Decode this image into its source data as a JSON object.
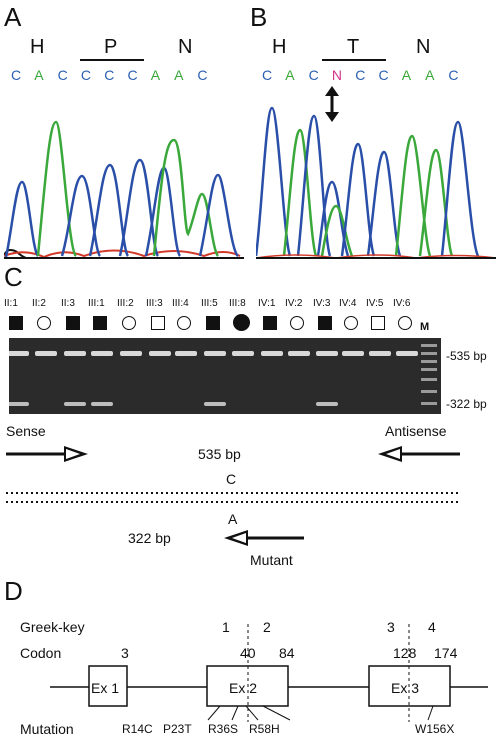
{
  "panel_a": {
    "letter": "A",
    "aa": [
      "H",
      "P",
      "N"
    ],
    "bases": [
      {
        "b": "C",
        "color": "#2a5fb0"
      },
      {
        "b": "A",
        "color": "#3aa83a"
      },
      {
        "b": "C",
        "color": "#2a5fb0"
      },
      {
        "b": "C",
        "color": "#2a5fb0"
      },
      {
        "b": "C",
        "color": "#2a5fb0"
      },
      {
        "b": "C",
        "color": "#2a5fb0"
      },
      {
        "b": "A",
        "color": "#3aa83a"
      },
      {
        "b": "A",
        "color": "#3aa83a"
      },
      {
        "b": "C",
        "color": "#2a5fb0"
      }
    ]
  },
  "panel_b": {
    "letter": "B",
    "aa": [
      "H",
      "T",
      "N"
    ],
    "bases": [
      {
        "b": "C",
        "color": "#2a5fb0"
      },
      {
        "b": "A",
        "color": "#3aa83a"
      },
      {
        "b": "C",
        "color": "#2a5fb0"
      },
      {
        "b": "N",
        "color": "#d6338a"
      },
      {
        "b": "C",
        "color": "#2a5fb0"
      },
      {
        "b": "C",
        "color": "#2a5fb0"
      },
      {
        "b": "A",
        "color": "#3aa83a"
      },
      {
        "b": "A",
        "color": "#3aa83a"
      },
      {
        "b": "C",
        "color": "#2a5fb0"
      }
    ]
  },
  "panel_c": {
    "letter": "C",
    "lanes": [
      {
        "label": "II:1",
        "symbol": "square-filled"
      },
      {
        "label": "II:2",
        "symbol": "circle-open"
      },
      {
        "label": "II:3",
        "symbol": "square-filled"
      },
      {
        "label": "III:1",
        "symbol": "square-filled"
      },
      {
        "label": "III:2",
        "symbol": "circle-open"
      },
      {
        "label": "III:3",
        "symbol": "square-open"
      },
      {
        "label": "III:4",
        "symbol": "circle-open"
      },
      {
        "label": "III:5",
        "symbol": "square-filled"
      },
      {
        "label": "III:8",
        "symbol": "circle-filled"
      },
      {
        "label": "IV:1",
        "symbol": "square-filled"
      },
      {
        "label": "IV:2",
        "symbol": "circle-open"
      },
      {
        "label": "IV:3",
        "symbol": "square-filled"
      },
      {
        "label": "IV:4",
        "symbol": "circle-open"
      },
      {
        "label": "IV:5",
        "symbol": "square-open"
      },
      {
        "label": "IV:6",
        "symbol": "circle-open"
      }
    ],
    "marker_label": "M",
    "band_535": "-535 bp",
    "band_322": "-322 bp",
    "sense": "Sense",
    "antisense": "Antisense",
    "product_535": "535 bp",
    "wild_base": "C",
    "mutant_base": "A",
    "product_322": "322 bp",
    "mutant": "Mutant"
  },
  "panel_d": {
    "letter": "D",
    "greek_key_label": "Greek-key",
    "greek_key_numbers": [
      "1",
      "2",
      "3",
      "4"
    ],
    "codon_label": "Codon",
    "codons": [
      "3",
      "40",
      "84",
      "128",
      "174"
    ],
    "exons": [
      "Ex 1",
      "Ex 2",
      "Ex 3"
    ],
    "mutation_label": "Mutation",
    "mutations": [
      "R14C",
      "P23T",
      "R36S",
      "R58H",
      "W156X"
    ]
  }
}
